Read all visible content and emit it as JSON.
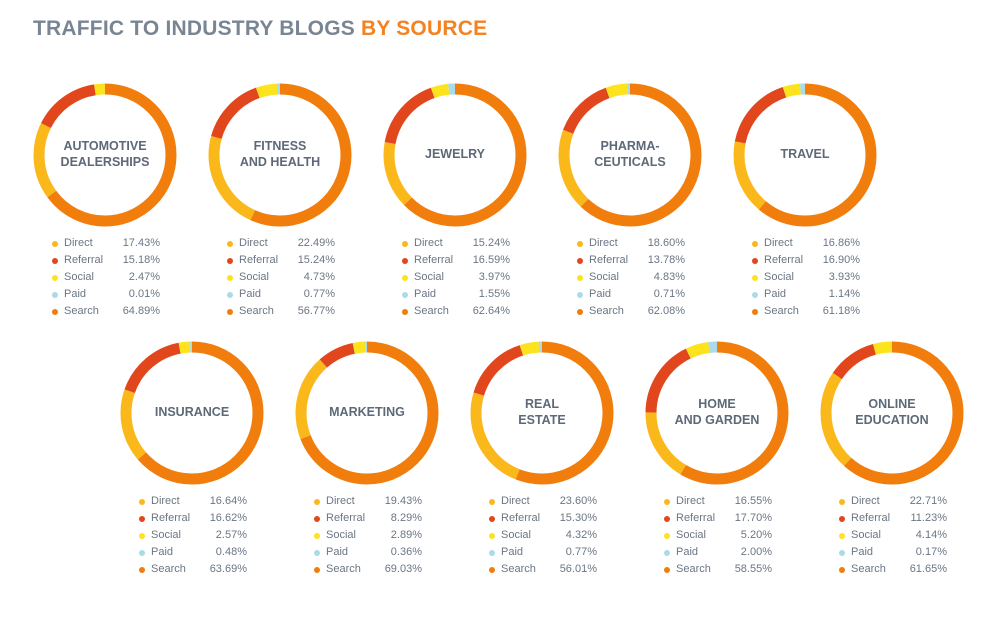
{
  "title": {
    "main": "TRAFFIC TO INDUSTRY BLOGS",
    "accent": "BY SOURCE"
  },
  "colors": {
    "Direct": "#fbb81b",
    "Referral": "#e2461d",
    "Social": "#fde31d",
    "Paid": "#a9dbe8",
    "Search": "#f07d0c"
  },
  "legend_labels": [
    "Direct",
    "Referral",
    "Social",
    "Paid",
    "Search"
  ],
  "chart_data": [
    {
      "type": "pie",
      "title": "AUTOMOTIVE\nDEALERSHIPS",
      "categories": [
        "Direct",
        "Referral",
        "Social",
        "Paid",
        "Search"
      ],
      "values": [
        17.43,
        15.18,
        2.47,
        0.01,
        64.89
      ],
      "labels": [
        "17.43%",
        "15.18%",
        "2.47%",
        "0.01%",
        "64.89%"
      ]
    },
    {
      "type": "pie",
      "title": "FITNESS\nAND HEALTH",
      "categories": [
        "Direct",
        "Referral",
        "Social",
        "Paid",
        "Search"
      ],
      "values": [
        22.49,
        15.24,
        4.73,
        0.77,
        56.77
      ],
      "labels": [
        "22.49%",
        "15.24%",
        "4.73%",
        "0.77%",
        "56.77%"
      ]
    },
    {
      "type": "pie",
      "title": "JEWELRY",
      "categories": [
        "Direct",
        "Referral",
        "Social",
        "Paid",
        "Search"
      ],
      "values": [
        15.24,
        16.59,
        3.97,
        1.55,
        62.64
      ],
      "labels": [
        "15.24%",
        "16.59%",
        "3.97%",
        "1.55%",
        "62.64%"
      ]
    },
    {
      "type": "pie",
      "title": "PHARMA-\nCEUTICALS",
      "categories": [
        "Direct",
        "Referral",
        "Social",
        "Paid",
        "Search"
      ],
      "values": [
        18.6,
        13.78,
        4.83,
        0.71,
        62.08
      ],
      "labels": [
        "18.60%",
        "13.78%",
        "4.83%",
        "0.71%",
        "62.08%"
      ]
    },
    {
      "type": "pie",
      "title": "TRAVEL",
      "categories": [
        "Direct",
        "Referral",
        "Social",
        "Paid",
        "Search"
      ],
      "values": [
        16.86,
        16.9,
        3.93,
        1.14,
        61.18
      ],
      "labels": [
        "16.86%",
        "16.90%",
        "3.93%",
        "1.14%",
        "61.18%"
      ]
    },
    {
      "type": "pie",
      "title": "INSURANCE",
      "categories": [
        "Direct",
        "Referral",
        "Social",
        "Paid",
        "Search"
      ],
      "values": [
        16.64,
        16.62,
        2.57,
        0.48,
        63.69
      ],
      "labels": [
        "16.64%",
        "16.62%",
        "2.57%",
        "0.48%",
        "63.69%"
      ]
    },
    {
      "type": "pie",
      "title": "MARKETING",
      "categories": [
        "Direct",
        "Referral",
        "Social",
        "Paid",
        "Search"
      ],
      "values": [
        19.43,
        8.29,
        2.89,
        0.36,
        69.03
      ],
      "labels": [
        "19.43%",
        "8.29%",
        "2.89%",
        "0.36%",
        "69.03%"
      ]
    },
    {
      "type": "pie",
      "title": "REAL\nESTATE",
      "categories": [
        "Direct",
        "Referral",
        "Social",
        "Paid",
        "Search"
      ],
      "values": [
        23.6,
        15.3,
        4.32,
        0.77,
        56.01
      ],
      "labels": [
        "23.60%",
        "15.30%",
        "4.32%",
        "0.77%",
        "56.01%"
      ]
    },
    {
      "type": "pie",
      "title": "HOME\nAND GARDEN",
      "categories": [
        "Direct",
        "Referral",
        "Social",
        "Paid",
        "Search"
      ],
      "values": [
        16.55,
        17.7,
        5.2,
        2.0,
        58.55
      ],
      "labels": [
        "16.55%",
        "17.70%",
        "5.20%",
        "2.00%",
        "58.55%"
      ]
    },
    {
      "type": "pie",
      "title": "ONLINE\nEDUCATION",
      "categories": [
        "Direct",
        "Referral",
        "Social",
        "Paid",
        "Search"
      ],
      "values": [
        22.71,
        11.23,
        4.14,
        0.17,
        61.65
      ],
      "labels": [
        "22.71%",
        "11.23%",
        "4.14%",
        "0.17%",
        "61.65%"
      ]
    }
  ]
}
